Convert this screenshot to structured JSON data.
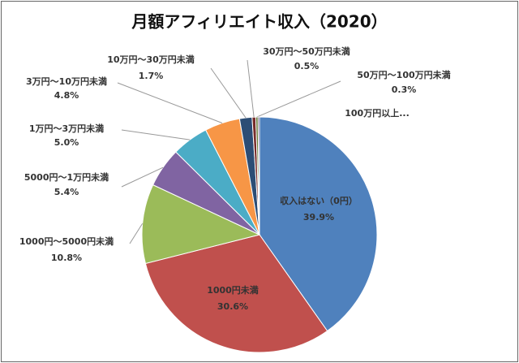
{
  "chart_data": {
    "type": "pie",
    "title": "月額アフィリエイト収入（2020）",
    "categories": [
      "収入はない（0円）",
      "1000円未満",
      "1000円～5000円未満",
      "5000円～1万円未満",
      "1万円～3万円未満",
      "3万円～10万円未満",
      "10万円～30万円未満",
      "30万円～50万円未満",
      "50万円～100万円未満",
      "100万円以上..."
    ],
    "values": [
      39.9,
      30.6,
      10.8,
      5.4,
      5.0,
      4.8,
      1.7,
      0.5,
      0.3,
      0.2
    ],
    "value_labels": [
      "39.9%",
      "30.6%",
      "10.8%",
      "5.4%",
      "5.0%",
      "4.8%",
      "1.7%",
      "0.5%",
      "0.3%",
      null
    ],
    "colors": [
      "#4f81bd",
      "#c0504d",
      "#9bbb59",
      "#8064a2",
      "#4bacc6",
      "#f79646",
      "#2c4d75",
      "#772c2a",
      "#5f7530",
      "#4d3b62"
    ]
  }
}
